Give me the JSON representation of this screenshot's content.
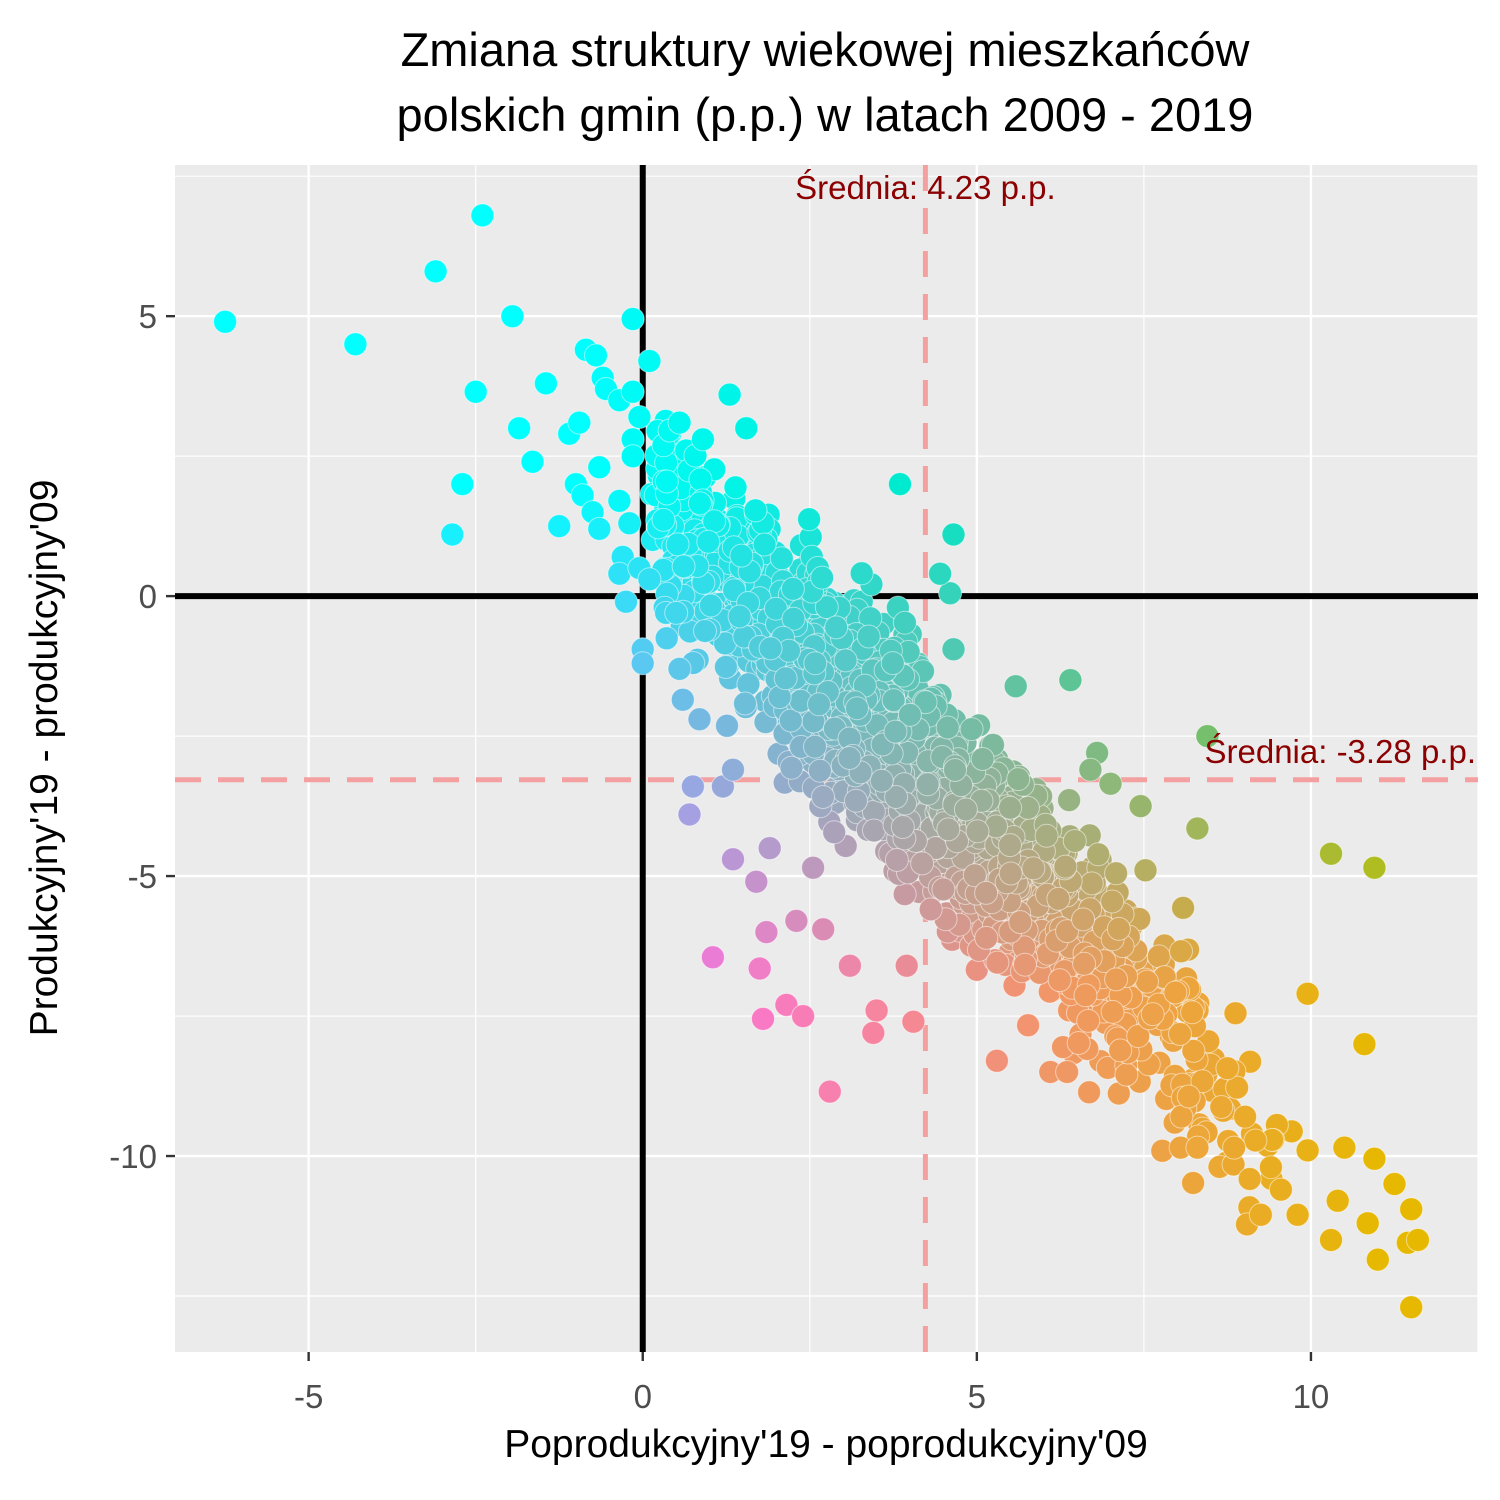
{
  "chart_data": {
    "type": "scatter",
    "title": [
      "Zmiana struktury wiekowej mieszkańców",
      "polskich gmin (p.p.) w latach 2009 - 2019"
    ],
    "xlabel": "Poprodukcyjny'19 - poprodukcyjny'09",
    "ylabel": "Produkcyjny'19 - produkcyjny'09",
    "xlim": [
      -7,
      12.5
    ],
    "ylim": [
      -13.5,
      7.7
    ],
    "x_ticks": [
      -5,
      0,
      5,
      10
    ],
    "y_ticks": [
      5,
      0,
      -5,
      -10
    ],
    "x_tick_labels": [
      "-5",
      "0",
      "5",
      "10"
    ],
    "y_tick_labels": [
      "5",
      "0",
      "-5",
      "-10"
    ],
    "grid": true,
    "reference_lines": {
      "x_zero": 0,
      "y_zero": 0,
      "x_mean": 4.23,
      "y_mean": -3.28
    },
    "annotations": [
      {
        "label": "Średnia: 4.23 p.p.",
        "x": 4.23
      },
      {
        "label": "Średnia: -3.28 p.p.",
        "y": -3.28
      }
    ],
    "colors": {
      "panel": "#ebebeb",
      "grid": "#ffffff",
      "zero_lines": "#000000",
      "mean_lines": "#f4a0a0",
      "annotation": "#8b0000",
      "corner_top_left": "#00ffff",
      "corner_bottom_left": "#ff66ff",
      "corner_top_right": "#00cc88",
      "corner_bottom_right": "#e6b800"
    },
    "points": [
      [
        -6.25,
        4.9
      ],
      [
        -2.4,
        6.8
      ],
      [
        -3.1,
        5.8
      ],
      [
        -4.3,
        4.5
      ],
      [
        -1.95,
        5.0
      ],
      [
        -2.5,
        3.65
      ],
      [
        -2.7,
        2.0
      ],
      [
        -2.85,
        1.1
      ],
      [
        -1.85,
        3.0
      ],
      [
        -1.65,
        2.4
      ],
      [
        -1.45,
        3.8
      ],
      [
        -1.25,
        1.25
      ],
      [
        -1.1,
        2.9
      ],
      [
        -0.95,
        3.1
      ],
      [
        -0.85,
        4.4
      ],
      [
        -0.7,
        4.3
      ],
      [
        -0.6,
        3.9
      ],
      [
        -0.55,
        3.7
      ],
      [
        -0.35,
        3.5
      ],
      [
        -0.15,
        3.65
      ],
      [
        -0.05,
        3.2
      ],
      [
        -0.15,
        2.8
      ],
      [
        -0.15,
        2.5
      ],
      [
        -0.65,
        2.3
      ],
      [
        -1.0,
        2.0
      ],
      [
        -0.9,
        1.8
      ],
      [
        -0.75,
        1.5
      ],
      [
        -0.65,
        1.2
      ],
      [
        -0.35,
        1.7
      ],
      [
        -0.2,
        1.3
      ],
      [
        -0.3,
        0.7
      ],
      [
        -0.35,
        0.4
      ],
      [
        -0.25,
        -0.1
      ],
      [
        -0.05,
        0.5
      ],
      [
        0.1,
        0.3
      ],
      [
        -0.15,
        4.95
      ],
      [
        0.1,
        4.2
      ],
      [
        1.3,
        3.6
      ],
      [
        0.55,
        3.1
      ],
      [
        0.9,
        2.8
      ],
      [
        1.55,
        3.0
      ],
      [
        0.35,
        -0.3
      ],
      [
        0.5,
        -0.3
      ],
      [
        0.0,
        -0.95
      ],
      [
        0.0,
        -1.2
      ],
      [
        0.55,
        -1.3
      ],
      [
        0.6,
        -1.85
      ],
      [
        0.85,
        -2.2
      ],
      [
        0.75,
        -3.4
      ],
      [
        0.7,
        -3.9
      ],
      [
        1.2,
        -3.4
      ],
      [
        1.35,
        -3.1
      ],
      [
        1.35,
        -4.7
      ],
      [
        1.05,
        -6.45
      ],
      [
        1.75,
        -6.65
      ],
      [
        1.8,
        -7.55
      ],
      [
        2.15,
        -7.3
      ],
      [
        2.4,
        -7.5
      ],
      [
        2.8,
        -8.85
      ],
      [
        3.1,
        -6.6
      ],
      [
        3.5,
        -7.4
      ],
      [
        3.45,
        -7.8
      ],
      [
        3.95,
        -6.6
      ],
      [
        4.05,
        -7.6
      ],
      [
        3.85,
        2.0
      ],
      [
        4.65,
        1.1
      ],
      [
        4.6,
        0.05
      ],
      [
        4.65,
        -0.95
      ],
      [
        4.45,
        0.4
      ],
      [
        6.4,
        -1.5
      ],
      [
        6.8,
        -2.8
      ],
      [
        6.7,
        -3.1
      ],
      [
        7.0,
        -3.35
      ],
      [
        7.45,
        -3.75
      ],
      [
        8.3,
        -4.15
      ],
      [
        8.45,
        -2.5
      ],
      [
        10.3,
        -4.6
      ],
      [
        10.95,
        -4.85
      ],
      [
        10.8,
        -8.0
      ],
      [
        9.95,
        -7.1
      ],
      [
        5.3,
        -8.3
      ],
      [
        6.1,
        -8.5
      ],
      [
        6.35,
        -8.5
      ],
      [
        8.05,
        -9.85
      ],
      [
        8.3,
        -9.85
      ],
      [
        8.85,
        -9.85
      ],
      [
        9.25,
        -11.05
      ],
      [
        9.4,
        -10.2
      ],
      [
        9.55,
        -10.6
      ],
      [
        9.8,
        -11.05
      ],
      [
        10.4,
        -10.8
      ],
      [
        10.3,
        -11.5
      ],
      [
        10.85,
        -11.2
      ],
      [
        11.0,
        -11.85
      ],
      [
        11.45,
        -11.55
      ],
      [
        11.6,
        -11.5
      ],
      [
        11.5,
        -12.7
      ],
      [
        11.25,
        -10.5
      ],
      [
        11.5,
        -10.95
      ],
      [
        10.95,
        -10.05
      ],
      [
        10.5,
        -9.85
      ],
      [
        9.95,
        -9.9
      ],
      [
        1.85,
        -6.0
      ],
      [
        2.3,
        -5.8
      ],
      [
        2.7,
        -5.95
      ],
      [
        1.7,
        -5.1
      ],
      [
        1.9,
        -4.5
      ],
      [
        2.55,
        -4.85
      ]
    ]
  }
}
